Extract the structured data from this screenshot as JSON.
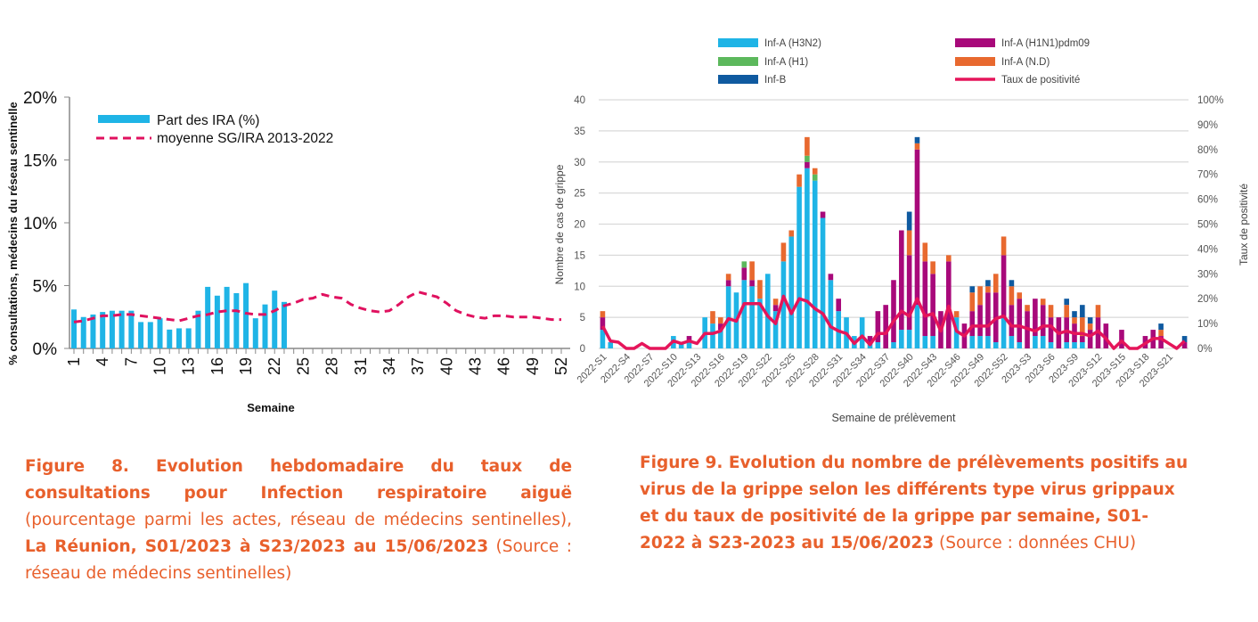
{
  "colors": {
    "caption": "#e8602c",
    "h3n2": "#1fb4e6",
    "h1n1": "#a8097a",
    "h1": "#5cb85c",
    "nd": "#e8692f",
    "b": "#0f5aa0",
    "positivity": "#e5155a",
    "ira_bar": "#1fb4e6",
    "mean_line": "#e0115f"
  },
  "chart_data": [
    {
      "type": "bar",
      "ylabel": "% consultations, médecins du réseau sentinelle",
      "xlabel": "Semaine",
      "ylim": [
        0,
        20
      ],
      "yticks": [
        "0%",
        "5%",
        "10%",
        "15%",
        "20%"
      ],
      "yticks_values": [
        0,
        5,
        10,
        15,
        20
      ],
      "xlim": [
        1,
        52
      ],
      "xticks": [
        "1",
        "4",
        "7",
        "10",
        "13",
        "16",
        "19",
        "22",
        "25",
        "28",
        "31",
        "34",
        "37",
        "40",
        "43",
        "46",
        "49",
        "52"
      ],
      "legend_position": "top-left",
      "series": [
        {
          "name": "Part des IRA (%)",
          "kind": "bar",
          "x": [
            1,
            2,
            3,
            4,
            5,
            6,
            7,
            8,
            9,
            10,
            11,
            12,
            13,
            14,
            15,
            16,
            17,
            18,
            19,
            20,
            21,
            22,
            23
          ],
          "values": [
            3.1,
            2.5,
            2.7,
            2.9,
            3.0,
            3.0,
            3.0,
            2.1,
            2.1,
            2.4,
            1.5,
            1.6,
            1.6,
            3.0,
            4.9,
            4.2,
            4.9,
            4.4,
            5.2,
            2.4,
            3.5,
            4.6,
            3.7
          ]
        },
        {
          "name": "moyenne SG/IRA 2013-2022",
          "kind": "line-dashed",
          "x": [
            1,
            2,
            3,
            4,
            5,
            6,
            7,
            8,
            9,
            10,
            11,
            12,
            13,
            14,
            15,
            16,
            17,
            18,
            19,
            20,
            21,
            22,
            23,
            24,
            25,
            26,
            27,
            28,
            29,
            30,
            31,
            32,
            33,
            34,
            35,
            36,
            37,
            38,
            39,
            40,
            41,
            42,
            43,
            44,
            45,
            46,
            47,
            48,
            49,
            50,
            51,
            52
          ],
          "values": [
            2.1,
            2.2,
            2.4,
            2.6,
            2.6,
            2.7,
            2.7,
            2.6,
            2.5,
            2.4,
            2.3,
            2.2,
            2.4,
            2.6,
            2.7,
            2.9,
            3.0,
            3.0,
            2.8,
            2.7,
            2.7,
            3.0,
            3.4,
            3.6,
            3.9,
            4.0,
            4.3,
            4.1,
            4.0,
            3.5,
            3.2,
            3.0,
            2.9,
            3.0,
            3.5,
            4.1,
            4.5,
            4.3,
            4.1,
            3.6,
            3.0,
            2.7,
            2.5,
            2.4,
            2.6,
            2.6,
            2.5,
            2.5,
            2.5,
            2.4,
            2.3,
            2.3
          ]
        }
      ]
    },
    {
      "type": "bar",
      "stacked": true,
      "ylabel": "Nombre de cas de grippe",
      "y2label": "Taux de positivité",
      "xlabel": "Semaine de prélèvement",
      "ylim": [
        0,
        40
      ],
      "yticks": [
        "0",
        "5",
        "10",
        "15",
        "20",
        "25",
        "30",
        "35",
        "40"
      ],
      "y2lim": [
        0,
        100
      ],
      "y2ticks": [
        "0%",
        "10%",
        "20%",
        "30%",
        "40%",
        "50%",
        "60%",
        "70%",
        "80%",
        "90%",
        "100%"
      ],
      "grid": true,
      "legend_position": "top",
      "xticks": [
        "2022-S1",
        "2022-S4",
        "2022-S7",
        "2022-S10",
        "2022-S13",
        "2022-S16",
        "2022-S19",
        "2022-S22",
        "2022-S25",
        "2022-S28",
        "2022-S31",
        "2022-S34",
        "2022-S37",
        "2022-S40",
        "2022-S43",
        "2022-S46",
        "2022-S49",
        "2022-S52",
        "2023-S3",
        "2023-S6",
        "2023-S9",
        "2023-S12",
        "2023-S15",
        "2023-S18",
        "2023-S21"
      ],
      "n_weeks": 75,
      "series": [
        {
          "name": "Inf-A (H3N2)",
          "color_key": "h3n2",
          "values": [
            3,
            1,
            0,
            0,
            0,
            0,
            0,
            0,
            0,
            2,
            1,
            1,
            0,
            5,
            4,
            3,
            10,
            9,
            11,
            10,
            8,
            12,
            6,
            14,
            18,
            26,
            29,
            27,
            21,
            11,
            6,
            5,
            2,
            5,
            1,
            1,
            0,
            1,
            3,
            3,
            7,
            2,
            2,
            0,
            0,
            5,
            0,
            2,
            2,
            2,
            1,
            5,
            2,
            1,
            0,
            2,
            2,
            1,
            0,
            1,
            1,
            1,
            0,
            0,
            0,
            0,
            0,
            0,
            0,
            0,
            0,
            0,
            0,
            0,
            0
          ]
        },
        {
          "name": "Inf-A  (H1N1)pdm09",
          "color_key": "h1n1",
          "values": [
            2,
            0,
            0,
            0,
            0,
            0,
            0,
            0,
            0,
            0,
            0,
            1,
            0,
            0,
            0,
            1,
            1,
            0,
            2,
            1,
            0,
            0,
            1,
            0,
            0,
            0,
            1,
            0,
            1,
            1,
            2,
            0,
            0,
            0,
            1,
            5,
            7,
            10,
            16,
            12,
            25,
            12,
            10,
            6,
            14,
            0,
            4,
            4,
            5,
            7,
            8,
            10,
            5,
            7,
            6,
            6,
            5,
            4,
            5,
            4,
            3,
            1,
            3,
            5,
            4,
            0,
            3,
            0,
            0,
            2,
            3,
            2,
            0,
            0,
            1
          ]
        },
        {
          "name": "Inf-A (H1)",
          "color_key": "h1",
          "values": [
            0,
            0,
            0,
            0,
            0,
            0,
            0,
            0,
            0,
            0,
            0,
            0,
            0,
            0,
            0,
            0,
            0,
            0,
            1,
            0,
            0,
            0,
            0,
            0,
            0,
            0,
            1,
            1,
            0,
            0,
            0,
            0,
            0,
            0,
            0,
            0,
            0,
            0,
            0,
            0,
            0,
            0,
            0,
            0,
            0,
            0,
            0,
            0,
            0,
            0,
            0,
            0,
            0,
            0,
            0,
            0,
            0,
            0,
            0,
            0,
            0,
            0,
            0,
            0,
            0,
            0,
            0,
            0,
            0,
            0,
            0,
            0,
            0,
            0,
            0
          ]
        },
        {
          "name": "Inf-A (N.D)",
          "color_key": "nd",
          "values": [
            1,
            0,
            0,
            0,
            0,
            0,
            0,
            0,
            0,
            0,
            0,
            0,
            0,
            0,
            2,
            1,
            1,
            0,
            0,
            3,
            3,
            0,
            1,
            3,
            1,
            2,
            3,
            1,
            0,
            0,
            0,
            0,
            0,
            0,
            0,
            0,
            0,
            0,
            0,
            4,
            1,
            3,
            2,
            0,
            1,
            1,
            0,
            3,
            3,
            1,
            3,
            3,
            3,
            1,
            1,
            0,
            1,
            2,
            0,
            2,
            1,
            3,
            1,
            2,
            0,
            0,
            0,
            0,
            0,
            0,
            0,
            1,
            0,
            0,
            0
          ]
        },
        {
          "name": "Inf-B",
          "color_key": "b",
          "values": [
            0,
            0,
            0,
            0,
            0,
            0,
            0,
            0,
            0,
            0,
            0,
            0,
            0,
            0,
            0,
            0,
            0,
            0,
            0,
            0,
            0,
            0,
            0,
            0,
            0,
            0,
            0,
            0,
            0,
            0,
            0,
            0,
            0,
            0,
            0,
            0,
            0,
            0,
            0,
            3,
            1,
            0,
            0,
            0,
            0,
            0,
            0,
            1,
            0,
            1,
            0,
            0,
            1,
            0,
            0,
            0,
            0,
            0,
            0,
            1,
            1,
            2,
            1,
            0,
            0,
            0,
            0,
            0,
            0,
            0,
            0,
            1,
            0,
            0,
            1
          ]
        },
        {
          "name": "Taux de positivité",
          "color_key": "positivity",
          "axis": "right",
          "kind": "line",
          "values": [
            9,
            3,
            2.5,
            0,
            0,
            2,
            0,
            0,
            0,
            3,
            2,
            3,
            2,
            6,
            6,
            7,
            12,
            11,
            18,
            18,
            18,
            13,
            10,
            21,
            14,
            20,
            19,
            16,
            14,
            8.7,
            7,
            6,
            2,
            5,
            1.5,
            6,
            6,
            11,
            15,
            13,
            20,
            13,
            14,
            7,
            17,
            7,
            5,
            9,
            9,
            9,
            12,
            13,
            9,
            9,
            8,
            7,
            9,
            9,
            6,
            7,
            6,
            6,
            5,
            7,
            4,
            0,
            3,
            0,
            0,
            2,
            4,
            4,
            2,
            0,
            3
          ]
        }
      ]
    }
  ],
  "captions": {
    "fig8": {
      "bold1": "Figure 8. Evolution hebdomadaire du taux de consultations pour Infection respiratoire aiguë",
      "normal1": " (pourcentage parmi les actes, réseau de médecins sentinelles), ",
      "bold2": "La Réunion, S01/2023 à S23/2023 au 15/06/2023",
      "normal2": " (Source : réseau de médecins sentinelles)"
    },
    "fig9": {
      "bold1": "Figure 9. Evolution du nombre de prélèvements positifs au virus de la grippe selon les différents type virus grippaux et du taux de positivité de la grippe par semaine, S01-2022 à S23-2023 au 15/06/2023",
      "normal1": " (Source : données CHU)"
    }
  }
}
